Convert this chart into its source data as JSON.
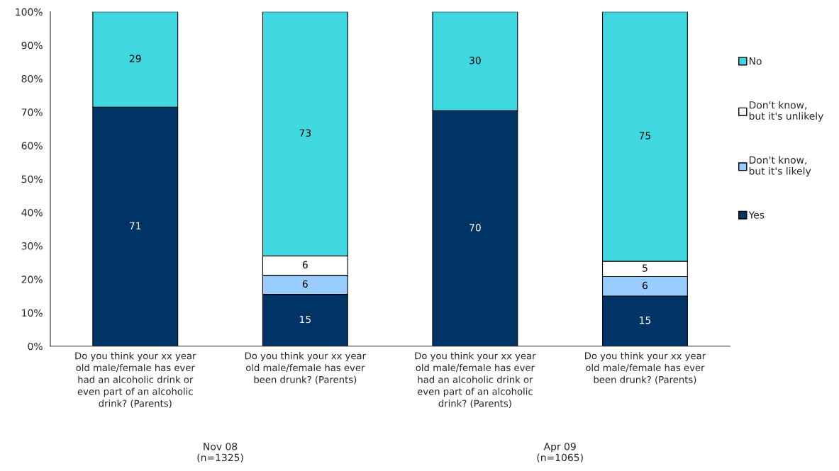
{
  "chart_data": {
    "type": "bar",
    "stacked": true,
    "categories": [
      "Do you think your xx year\nold male/female has ever\nhad an alcoholic drink or\neven part of an alcoholic\ndrink? (Parents)",
      "Do you think your xx year\nold male/female has ever\nbeen drunk? (Parents)",
      "Do you think your xx year\nold male/female has ever\nhad an alcoholic drink or\neven part of an alcoholic\ndrink? (Parents)",
      "Do you think your xx year\nold male/female has ever\nbeen drunk? (Parents)"
    ],
    "series": [
      {
        "name": "Yes",
        "color": "#003366",
        "values": [
          71.5,
          15.5,
          70.4,
          15
        ],
        "value_labels": [
          "71",
          "15",
          "70",
          "15"
        ]
      },
      {
        "name": "Don't know,\nbut it's likely",
        "color": "#99ccff",
        "values": [
          null,
          5.7,
          null,
          5.8
        ],
        "value_labels": [
          null,
          "6",
          null,
          "6"
        ]
      },
      {
        "name": "Don't know,\nbut it's unlikely",
        "color": "#ffffff",
        "values": [
          null,
          5.8,
          null,
          4.6
        ],
        "value_labels": [
          null,
          "6",
          null,
          "5"
        ]
      },
      {
        "name": "No",
        "color": "#40d8e0",
        "values": [
          28.5,
          73,
          29.6,
          74.6
        ],
        "value_labels": [
          "29",
          "73",
          "30",
          "75"
        ]
      }
    ],
    "ylim": [
      0,
      100
    ],
    "yticks": [
      {
        "value": 0,
        "label": "0%"
      },
      {
        "value": 10,
        "label": "10%"
      },
      {
        "value": 20,
        "label": "20%"
      },
      {
        "value": 30,
        "label": "30%"
      },
      {
        "value": 40,
        "label": "40%"
      },
      {
        "value": 50,
        "label": "50%"
      },
      {
        "value": 60,
        "label": "60%"
      },
      {
        "value": 70,
        "label": "70%"
      },
      {
        "value": 80,
        "label": "80%"
      },
      {
        "value": 90,
        "label": "90%"
      },
      {
        "value": 100,
        "label": "100%"
      }
    ],
    "annotations": [
      "Nov 08\n(n=1325)",
      "Apr 09\n(n=1065)"
    ],
    "legend": "right",
    "grid": false
  }
}
